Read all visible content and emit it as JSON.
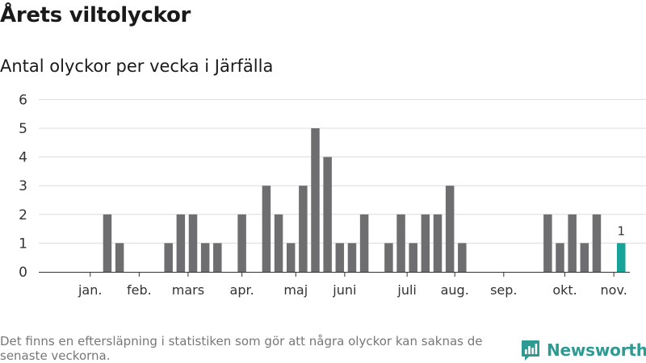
{
  "title": "Årets viltolyckor",
  "subtitle": "Antal olyckor per vecka i Järfälla",
  "footnote": "Det finns en eftersläpning i statistiken som gör att några olyckor kan saknas de senaste veckorna.",
  "brand": {
    "name": "Newsworthy",
    "color": "#2e9b93"
  },
  "chart_data": {
    "type": "bar",
    "title": "Antal olyckor per vecka i Järfälla",
    "xlabel": "",
    "ylabel": "",
    "ylim": [
      0,
      6
    ],
    "yticks": [
      0,
      1,
      2,
      3,
      4,
      5,
      6
    ],
    "grid": true,
    "colors": {
      "bar": "#6e6e70",
      "highlight": "#17a397"
    },
    "weeks": [
      1,
      2,
      3,
      4,
      5,
      6,
      7,
      8,
      9,
      10,
      11,
      12,
      13,
      14,
      15,
      16,
      17,
      18,
      19,
      20,
      21,
      22,
      23,
      24,
      25,
      26,
      27,
      28,
      29,
      30,
      31,
      32,
      33,
      34,
      35,
      36,
      37,
      38,
      39,
      40,
      41,
      42,
      43,
      44,
      45,
      46
    ],
    "values": [
      0,
      0,
      0,
      2,
      1,
      0,
      0,
      0,
      1,
      2,
      2,
      1,
      1,
      0,
      2,
      0,
      3,
      2,
      1,
      3,
      5,
      4,
      1,
      1,
      2,
      0,
      1,
      2,
      1,
      2,
      2,
      3,
      1,
      0,
      0,
      0,
      0,
      0,
      0,
      2,
      1,
      2,
      1,
      2,
      0,
      1
    ],
    "highlight_index": 45,
    "data_labels": [
      {
        "index": 45,
        "text": "1"
      }
    ],
    "month_labels": [
      {
        "label": "jan.",
        "week": 2.6
      },
      {
        "label": "feb.",
        "week": 6.6
      },
      {
        "label": "mars",
        "week": 10.6
      },
      {
        "label": "apr.",
        "week": 15.0
      },
      {
        "label": "maj",
        "week": 19.4
      },
      {
        "label": "juni",
        "week": 23.4
      },
      {
        "label": "juli",
        "week": 28.5
      },
      {
        "label": "aug.",
        "week": 32.4
      },
      {
        "label": "sep.",
        "week": 36.4
      },
      {
        "label": "okt.",
        "week": 41.4
      },
      {
        "label": "nov.",
        "week": 45.4
      }
    ]
  }
}
